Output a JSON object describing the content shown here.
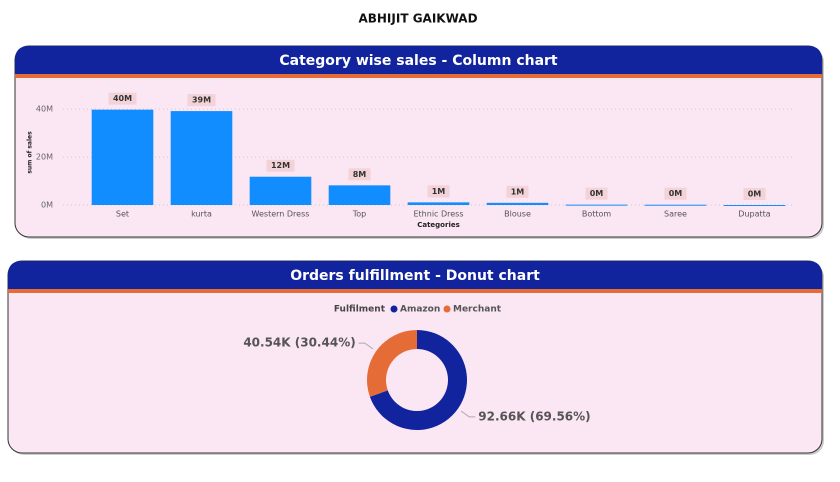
{
  "header": {
    "title": "ABHIJIT GAIKWAD"
  },
  "chart_data": [
    {
      "type": "bar",
      "title": "Category wise sales - Column chart",
      "x_label": "Categories",
      "y_label": "sum of sales",
      "categories": [
        "Set",
        "kurta",
        "Western Dress",
        "Top",
        "Ethnic Dress",
        "Blouse",
        "Bottom",
        "Saree",
        "Dupatta"
      ],
      "values": [
        39800000,
        39200000,
        11800000,
        8200000,
        1100000,
        900000,
        150000,
        120000,
        900
      ],
      "value_labels": [
        "40M",
        "39M",
        "12M",
        "8M",
        "1M",
        "1M",
        "0M",
        "0M",
        "0M"
      ],
      "color": "#118dff",
      "ylim": [
        0,
        48000000
      ],
      "yticks": [
        {
          "value": 0,
          "label": "0M"
        },
        {
          "value": 20000000,
          "label": "20M"
        },
        {
          "value": 40000000,
          "label": "40M"
        }
      ],
      "grid": true
    },
    {
      "type": "pie",
      "title": "Orders fulfillment - Donut chart",
      "legend_title": "Fulfilment",
      "categories": [
        "Amazon",
        "Merchant"
      ],
      "values": [
        92660,
        40540
      ],
      "value_labels": [
        "92.66K (69.56%)",
        "40.54K (30.44%)"
      ],
      "colors": [
        "#12239e",
        "#e66c37"
      ],
      "hole": true
    }
  ]
}
